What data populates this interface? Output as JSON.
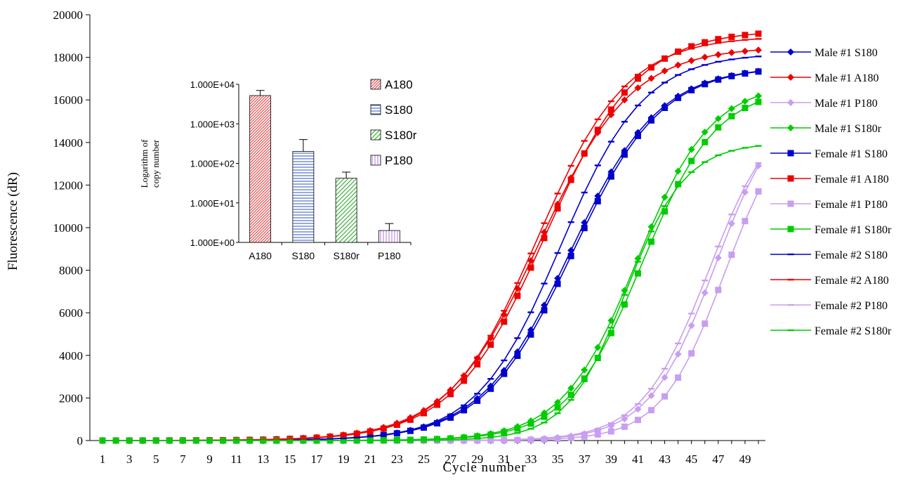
{
  "chart_data": [
    {
      "type": "line",
      "title": "",
      "xlabel": "Cycle number",
      "ylabel": "Fluorescence (dR)",
      "xlim": [
        1,
        50
      ],
      "ylim": [
        0,
        20000
      ],
      "x_tick_labels": [
        "1",
        "3",
        "5",
        "7",
        "9",
        "11",
        "13",
        "15",
        "17",
        "19",
        "21",
        "23",
        "25",
        "27",
        "29",
        "31",
        "33",
        "35",
        "37",
        "39",
        "41",
        "43",
        "45",
        "47",
        "49"
      ],
      "y_tick_labels": [
        "0",
        "2000",
        "4000",
        "6000",
        "8000",
        "10000",
        "12000",
        "14000",
        "16000",
        "18000",
        "20000"
      ],
      "legend_position": "right",
      "grid": false,
      "series": [
        {
          "name": "Male #1 S180",
          "color": "#0000cc",
          "marker": "diamond",
          "plateau": 17600,
          "midpoint": 35.9,
          "slope": 0.3
        },
        {
          "name": "Male #1 A180",
          "color": "#ee0000",
          "marker": "diamond",
          "plateau": 18500,
          "midpoint": 33.6,
          "slope": 0.29
        },
        {
          "name": "Male #1 P180",
          "color": "#c89ef0",
          "marker": "diamond",
          "plateau": 16500,
          "midpoint": 46.8,
          "slope": 0.4
        },
        {
          "name": "Male #1 S180r",
          "color": "#00cc00",
          "marker": "diamond",
          "plateau": 16800,
          "midpoint": 40.9,
          "slope": 0.36
        },
        {
          "name": "Female #1 S180",
          "color": "#0000cc",
          "marker": "square",
          "plateau": 17600,
          "midpoint": 36.1,
          "slope": 0.3
        },
        {
          "name": "Female #1 A180",
          "color": "#ee0000",
          "marker": "square",
          "plateau": 19300,
          "midpoint": 34.1,
          "slope": 0.29
        },
        {
          "name": "Female #1 P180",
          "color": "#c89ef0",
          "marker": "square",
          "plateau": 15800,
          "midpoint": 47.5,
          "slope": 0.42
        },
        {
          "name": "Female #1 S180r",
          "color": "#00cc00",
          "marker": "square",
          "plateau": 16600,
          "midpoint": 41.3,
          "slope": 0.36
        },
        {
          "name": "Female #2 S180",
          "color": "#0000cc",
          "marker": "dash",
          "plateau": 18200,
          "midpoint": 35.2,
          "slope": 0.32
        },
        {
          "name": "Female #2 A180",
          "color": "#ee0000",
          "marker": "dash",
          "plateau": 19000,
          "midpoint": 33.5,
          "slope": 0.3
        },
        {
          "name": "Female #2 P180",
          "color": "#c89ef0",
          "marker": "dash",
          "plateau": 16000,
          "midpoint": 46.3,
          "slope": 0.4
        },
        {
          "name": "Female #2 S180r",
          "color": "#00cc00",
          "marker": "dash",
          "plateau": 14000,
          "midpoint": 40.1,
          "slope": 0.45
        }
      ]
    },
    {
      "type": "bar",
      "title": "",
      "xlabel": "",
      "ylabel": "Logarithm of copy number",
      "y_scale": "log",
      "ylim": [
        1,
        10000
      ],
      "y_tick_labels": [
        "1.000E+00",
        "1.000E+01",
        "1.000E+02",
        "1.000E+03",
        "1.000E+04"
      ],
      "categories": [
        "A180",
        "S180",
        "S180r",
        "P180"
      ],
      "values": [
        5200,
        200,
        42,
        2
      ],
      "error_upper": [
        7000,
        400,
        60,
        3
      ],
      "legend": [
        "A180",
        "S180",
        "S180r",
        "P180"
      ],
      "legend_position": "right",
      "colors": [
        "#e05050",
        "#5070d0",
        "#40b040",
        "#c090e0"
      ]
    }
  ]
}
